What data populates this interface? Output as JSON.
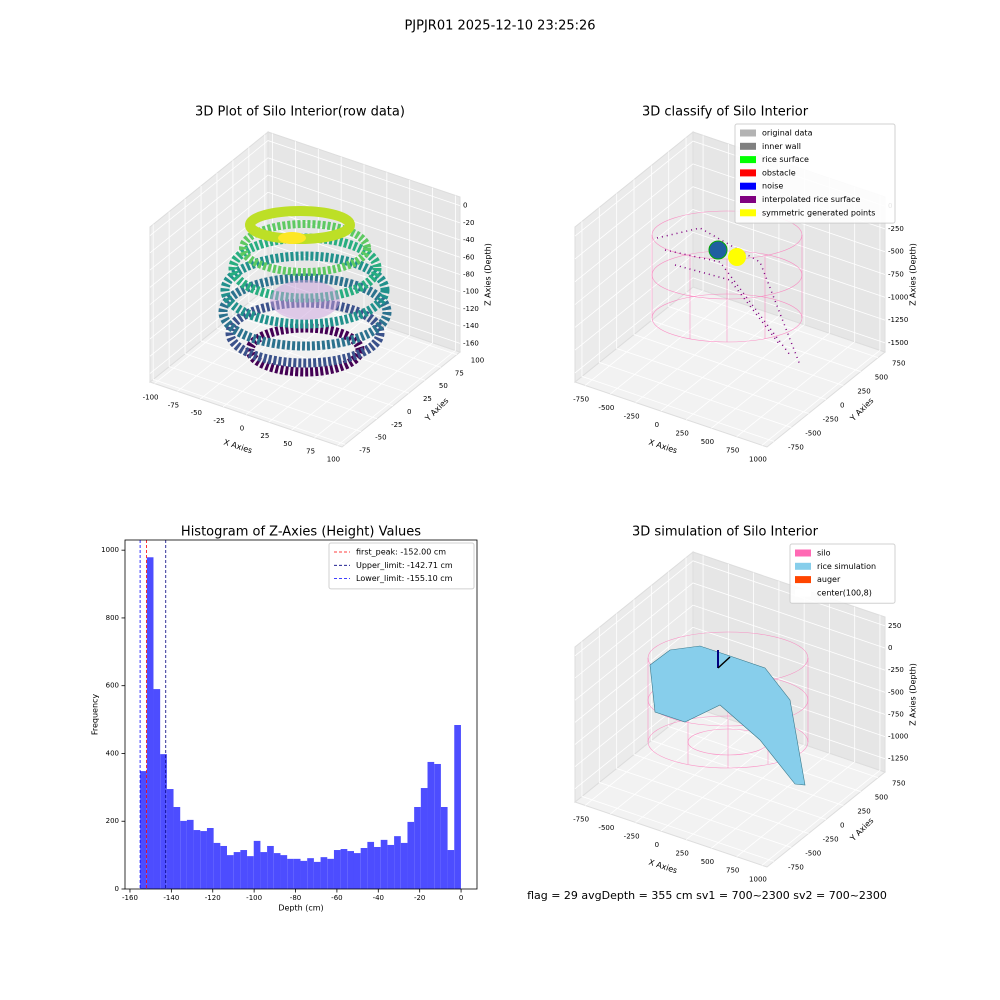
{
  "suptitle": "PJPJR01 2025-12-10 23:25:26",
  "footer_text": "flag = 29  avgDepth = 355 cm  sv1 = 700~2300  sv2 = 700~2300",
  "chart_data": [
    {
      "type": "scatter3d",
      "title": "3D Plot of Silo Interior(row data)",
      "xlabel": "X Axies",
      "ylabel": "Y Axies",
      "zlabel": "Z Axies (Depth)",
      "xlim": [
        -105,
        105
      ],
      "ylim": [
        -80,
        105
      ],
      "zlim": [
        -170,
        10
      ],
      "xticks": [
        -100,
        -75,
        -50,
        -25,
        0,
        25,
        50,
        75,
        100
      ],
      "yticks": [
        -75,
        -50,
        -25,
        0,
        25,
        50,
        75,
        100
      ],
      "zticks": [
        0,
        -20,
        -40,
        -60,
        -80,
        -100,
        -120,
        -140,
        -160
      ]
    },
    {
      "type": "scatter3d",
      "title": "3D classify of Silo Interior",
      "xlabel": "X Axies",
      "ylabel": "Y Axies",
      "zlabel": "Z Axies (Depth)",
      "xlim": [
        -850,
        1050
      ],
      "ylim": [
        -850,
        850
      ],
      "zlim": [
        -1600,
        100
      ],
      "xticks": [
        -750,
        -500,
        -250,
        0,
        250,
        500,
        750,
        1000
      ],
      "yticks": [
        -750,
        -500,
        -250,
        0,
        250,
        500,
        750
      ],
      "zticks": [
        0,
        -250,
        -500,
        -750,
        -1000,
        -1250,
        -1500
      ],
      "legend_loc": "upper right",
      "legend": [
        {
          "name": "original data",
          "color": "#b3b3b3"
        },
        {
          "name": "inner wall",
          "color": "#808080"
        },
        {
          "name": "rice surface",
          "color": "#00ff00"
        },
        {
          "name": "obstacle",
          "color": "#ff0000"
        },
        {
          "name": "noise",
          "color": "#0000ff"
        },
        {
          "name": "interpolated rice surface",
          "color": "#800080"
        },
        {
          "name": "symmetric generated points",
          "color": "#ffff00"
        }
      ]
    },
    {
      "type": "surface3d",
      "title": "3D simulation of Silo Interior",
      "xlabel": "X Axies",
      "ylabel": "Y Axies",
      "zlabel": "Z Axies (Depth)",
      "xlim": [
        -850,
        1050
      ],
      "ylim": [
        -850,
        850
      ],
      "zlim": [
        -1400,
        350
      ],
      "xticks": [
        -750,
        -500,
        -250,
        0,
        250,
        500,
        750,
        1000
      ],
      "yticks": [
        -750,
        -500,
        -250,
        0,
        250,
        500,
        750
      ],
      "zticks": [
        250,
        0,
        -250,
        -500,
        -750,
        -1000,
        -1250
      ],
      "legend_loc": "upper right",
      "legend": [
        {
          "name": "silo",
          "color": "#ff69b4"
        },
        {
          "name": "rice simulation",
          "color": "#87ceeb"
        },
        {
          "name": "auger",
          "color": "#ff4500"
        },
        {
          "name": "center(100,8)",
          "color": "#ffffff"
        }
      ]
    },
    {
      "type": "histogram",
      "title": "Histogram of Z-Axies (Height) Values",
      "xlabel": "Depth (cm)",
      "ylabel": "Frequency",
      "color": "#4d4dff",
      "bins": [
        -155.1,
        -151.87,
        -148.64,
        -145.41,
        -142.18,
        -138.95,
        -135.72,
        -132.49,
        -129.26,
        -126.03,
        -122.8,
        -119.57,
        -116.34,
        -113.11,
        -109.88,
        -106.65,
        -103.42,
        -100.19,
        -96.96,
        -93.73,
        -90.5,
        -87.27,
        -84.04,
        -80.81,
        -77.58,
        -74.35,
        -71.12,
        -67.89,
        -64.66,
        -61.43,
        -58.2,
        -54.97,
        -51.74,
        -48.51,
        -45.28,
        -42.05,
        -38.82,
        -35.59,
        -32.36,
        -29.13,
        -25.9,
        -22.67,
        -19.44,
        -16.21,
        -12.98,
        -9.75,
        -6.52,
        -3.29,
        -0.06
      ],
      "values": [
        348,
        979,
        590,
        398,
        295,
        242,
        201,
        204,
        174,
        171,
        180,
        136,
        127,
        100,
        109,
        115,
        97,
        142,
        109,
        127,
        106,
        100,
        89,
        89,
        83,
        91,
        80,
        94,
        89,
        115,
        118,
        112,
        106,
        121,
        139,
        124,
        145,
        130,
        156,
        136,
        198,
        242,
        298,
        375,
        369,
        242,
        115,
        484
      ],
      "xlim": [
        -162.4,
        7.7
      ],
      "ylim": [
        0,
        1030
      ],
      "xticks": [
        -160,
        -140,
        -120,
        -100,
        -80,
        -60,
        -40,
        -20,
        0
      ],
      "yticks": [
        0,
        200,
        400,
        600,
        800,
        1000
      ],
      "legend_loc": "upper right",
      "vlines": [
        {
          "name": "first_peak: -152.00 cm",
          "value": -152,
          "color": "#ff0000"
        },
        {
          "name": "Upper_limit: -142.71 cm",
          "value": -142.71,
          "color": "#000080"
        },
        {
          "name": "Lower_limit: -155.10 cm",
          "value": -155.1,
          "color": "#0000ff"
        }
      ]
    }
  ]
}
